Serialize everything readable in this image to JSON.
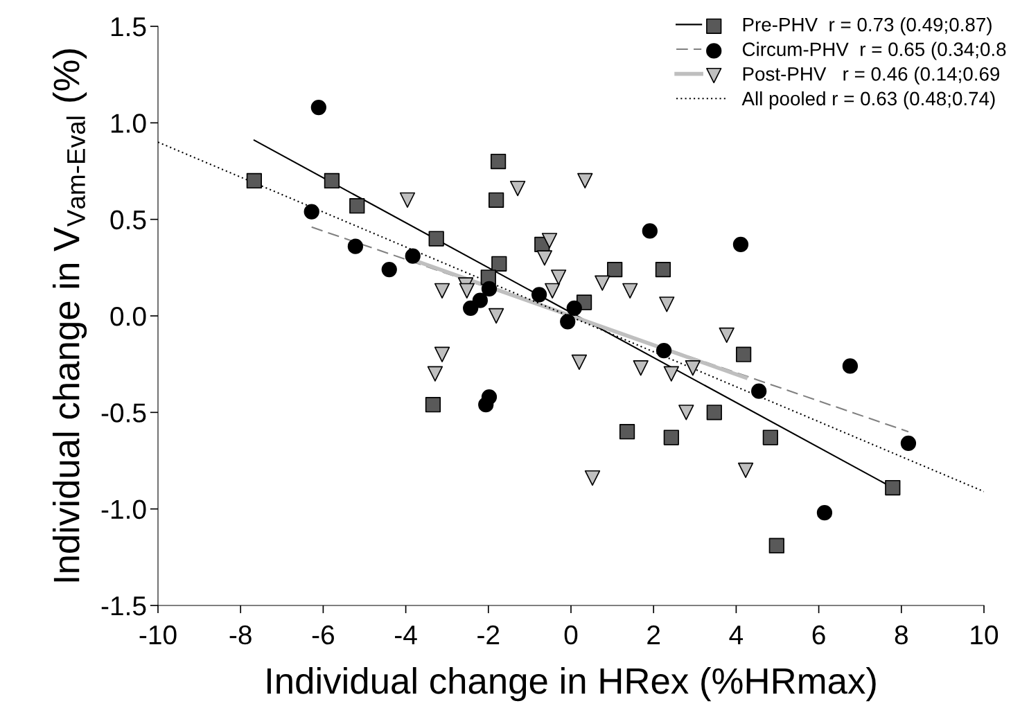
{
  "chart_data": {
    "type": "scatter",
    "xlabel": "Individual change in HRex (%HRmax)",
    "ylabel": "Individual change in V$_{Vam-Eval}$ (%)",
    "xlim": [
      -10,
      10
    ],
    "xticks": [
      -10,
      -8,
      -6,
      -4,
      -2,
      0,
      2,
      4,
      6,
      8,
      10
    ],
    "ylim": [
      -1.5,
      1.5
    ],
    "yticks": [
      -1.5,
      {
        "value": -1,
        "label": "-1.0"
      },
      -0.5,
      {
        "value": 0,
        "label": "0.0"
      },
      0.5,
      {
        "value": 1,
        "label": "1.0"
      },
      1.5
    ],
    "grid": false,
    "legend": "top right",
    "series": [
      {
        "name": "Pre-PHV  r = 0.73 (0.49;0.87)",
        "marker": "square",
        "color": "#595959",
        "x": [
          -7.67,
          -5.79,
          -5.18,
          -3.26,
          -1.76,
          -1.81,
          -1.74,
          -2.0,
          -0.7,
          0.32,
          1.06,
          2.23,
          4.18,
          -3.34,
          1.36,
          2.43,
          3.47,
          4.83,
          7.79,
          4.98
        ],
        "values": [
          0.7,
          0.7,
          0.57,
          0.4,
          0.8,
          0.6,
          0.27,
          0.2,
          0.37,
          0.07,
          0.24,
          0.24,
          -0.2,
          -0.46,
          -0.6,
          -0.63,
          -0.5,
          -0.63,
          -0.89,
          -1.19
        ]
      },
      {
        "type": "line",
        "line_style": "solid",
        "color": "#000000",
        "x": [
          -7.67,
          7.79
        ],
        "values": [
          0.91,
          -0.89
        ]
      },
      {
        "name": "Circum-PHV  r = 0.65 (0.34;0.8",
        "marker": "circle",
        "color": "#000000",
        "x": [
          -6.11,
          -6.28,
          -5.22,
          -4.4,
          -3.83,
          -2.43,
          -2.2,
          -1.98,
          -0.77,
          0.08,
          -0.08,
          -2.06,
          -1.98,
          1.91,
          2.25,
          4.11,
          4.55,
          6.76,
          6.14,
          8.17
        ],
        "values": [
          1.08,
          0.54,
          0.36,
          0.24,
          0.31,
          0.04,
          0.08,
          0.14,
          0.11,
          0.04,
          -0.03,
          -0.46,
          -0.42,
          0.44,
          -0.18,
          0.37,
          -0.39,
          -0.26,
          -1.02,
          -0.66
        ]
      },
      {
        "type": "line",
        "line_style": "dashed",
        "color": "#808080",
        "x": [
          -6.28,
          8.17
        ],
        "values": [
          0.46,
          -0.6
        ]
      },
      {
        "name": "Post-PHV   r = 0.46 (0.14;0.69",
        "marker": "triangle",
        "color": "#bfbfbf",
        "x": [
          -3.96,
          -1.29,
          0.34,
          -0.52,
          -0.64,
          -0.45,
          -0.3,
          0.76,
          1.43,
          2.32,
          -3.12,
          -2.55,
          -2.52,
          -1.81,
          -3.12,
          -3.29,
          0.2,
          1.69,
          2.43,
          2.95,
          3.77,
          2.79,
          0.52,
          4.23
        ],
        "values": [
          0.6,
          0.66,
          0.7,
          0.39,
          0.3,
          0.13,
          0.2,
          0.17,
          0.13,
          0.06,
          0.13,
          0.16,
          0.13,
          0.0,
          -0.2,
          -0.3,
          -0.24,
          -0.27,
          -0.3,
          -0.27,
          -0.1,
          -0.5,
          -0.84,
          -0.8
        ]
      },
      {
        "type": "line",
        "line_style": "solid",
        "color": "#bfbfbf",
        "x": [
          -3.96,
          4.23
        ],
        "values": [
          0.3,
          -0.32
        ]
      },
      {
        "name": "All pooled r = 0.63 (0.48;0.74)",
        "type": "line",
        "line_style": "dotted",
        "color": "#000000",
        "x": [
          -10,
          10
        ],
        "values": [
          0.9,
          -0.91
        ]
      }
    ]
  }
}
